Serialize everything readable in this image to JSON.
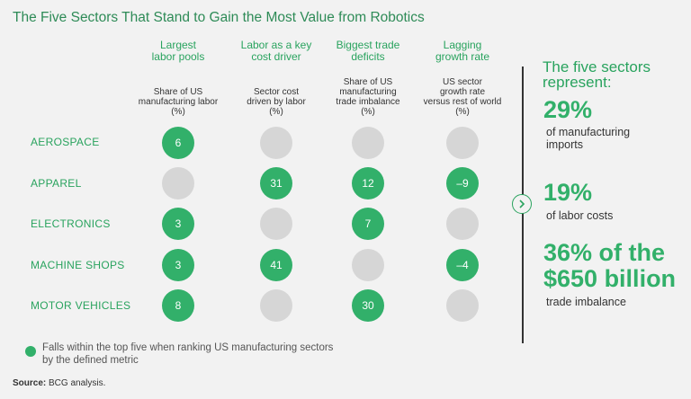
{
  "title": "The Five Sectors That Stand to Gain the Most Value from Robotics",
  "columns": [
    {
      "heading_line1": "Largest",
      "heading_line2": "labor pools",
      "sub_line1": "Share of US",
      "sub_line2": "manufacturing labor",
      "sub_line3": "(%)"
    },
    {
      "heading_line1": "Labor as a key",
      "heading_line2": "cost driver",
      "sub_line1": "Sector cost",
      "sub_line2": "driven by labor",
      "sub_line3": "(%)"
    },
    {
      "heading_line1": "Biggest trade",
      "heading_line2": "deficits",
      "sub_line0": "Share of US",
      "sub_line1": "manufacturing",
      "sub_line2": "trade imbalance",
      "sub_line3": "(%)"
    },
    {
      "heading_line1": "Lagging",
      "heading_line2": "growth rate",
      "sub_line0": "US sector",
      "sub_line1": "growth rate",
      "sub_line2": "versus rest of world",
      "sub_line3": "(%)"
    }
  ],
  "rows": [
    {
      "label": "AEROSPACE",
      "cells": [
        "6",
        null,
        null,
        null
      ]
    },
    {
      "label": "APPAREL",
      "cells": [
        null,
        "31",
        "12",
        "–9"
      ]
    },
    {
      "label": "ELECTRONICS",
      "cells": [
        "3",
        null,
        "7",
        null
      ]
    },
    {
      "label": "MACHINE SHOPS",
      "cells": [
        "3",
        "41",
        null,
        "–4"
      ]
    },
    {
      "label": "MOTOR VEHICLES",
      "cells": [
        "8",
        null,
        "30",
        null
      ]
    }
  ],
  "side": {
    "intro_line1": "The five sectors",
    "intro_line2": "represent:",
    "stat1_value": "29%",
    "stat1_line1": "of manufacturing",
    "stat1_line2": "imports",
    "stat2_value": "19%",
    "stat2_line1": "of labor costs",
    "stat3_line1": "36% of the",
    "stat3_line2": "$650 billion",
    "stat3_line3": "trade imbalance"
  },
  "legend": "Falls within the top five when ranking US manufacturing sectors by the defined metric",
  "source_label": "Source:",
  "source_text": "BCG analysis.",
  "colors": {
    "accent": "#32b06a",
    "inactive": "#d6d6d6",
    "background": "#f2f2f2"
  }
}
